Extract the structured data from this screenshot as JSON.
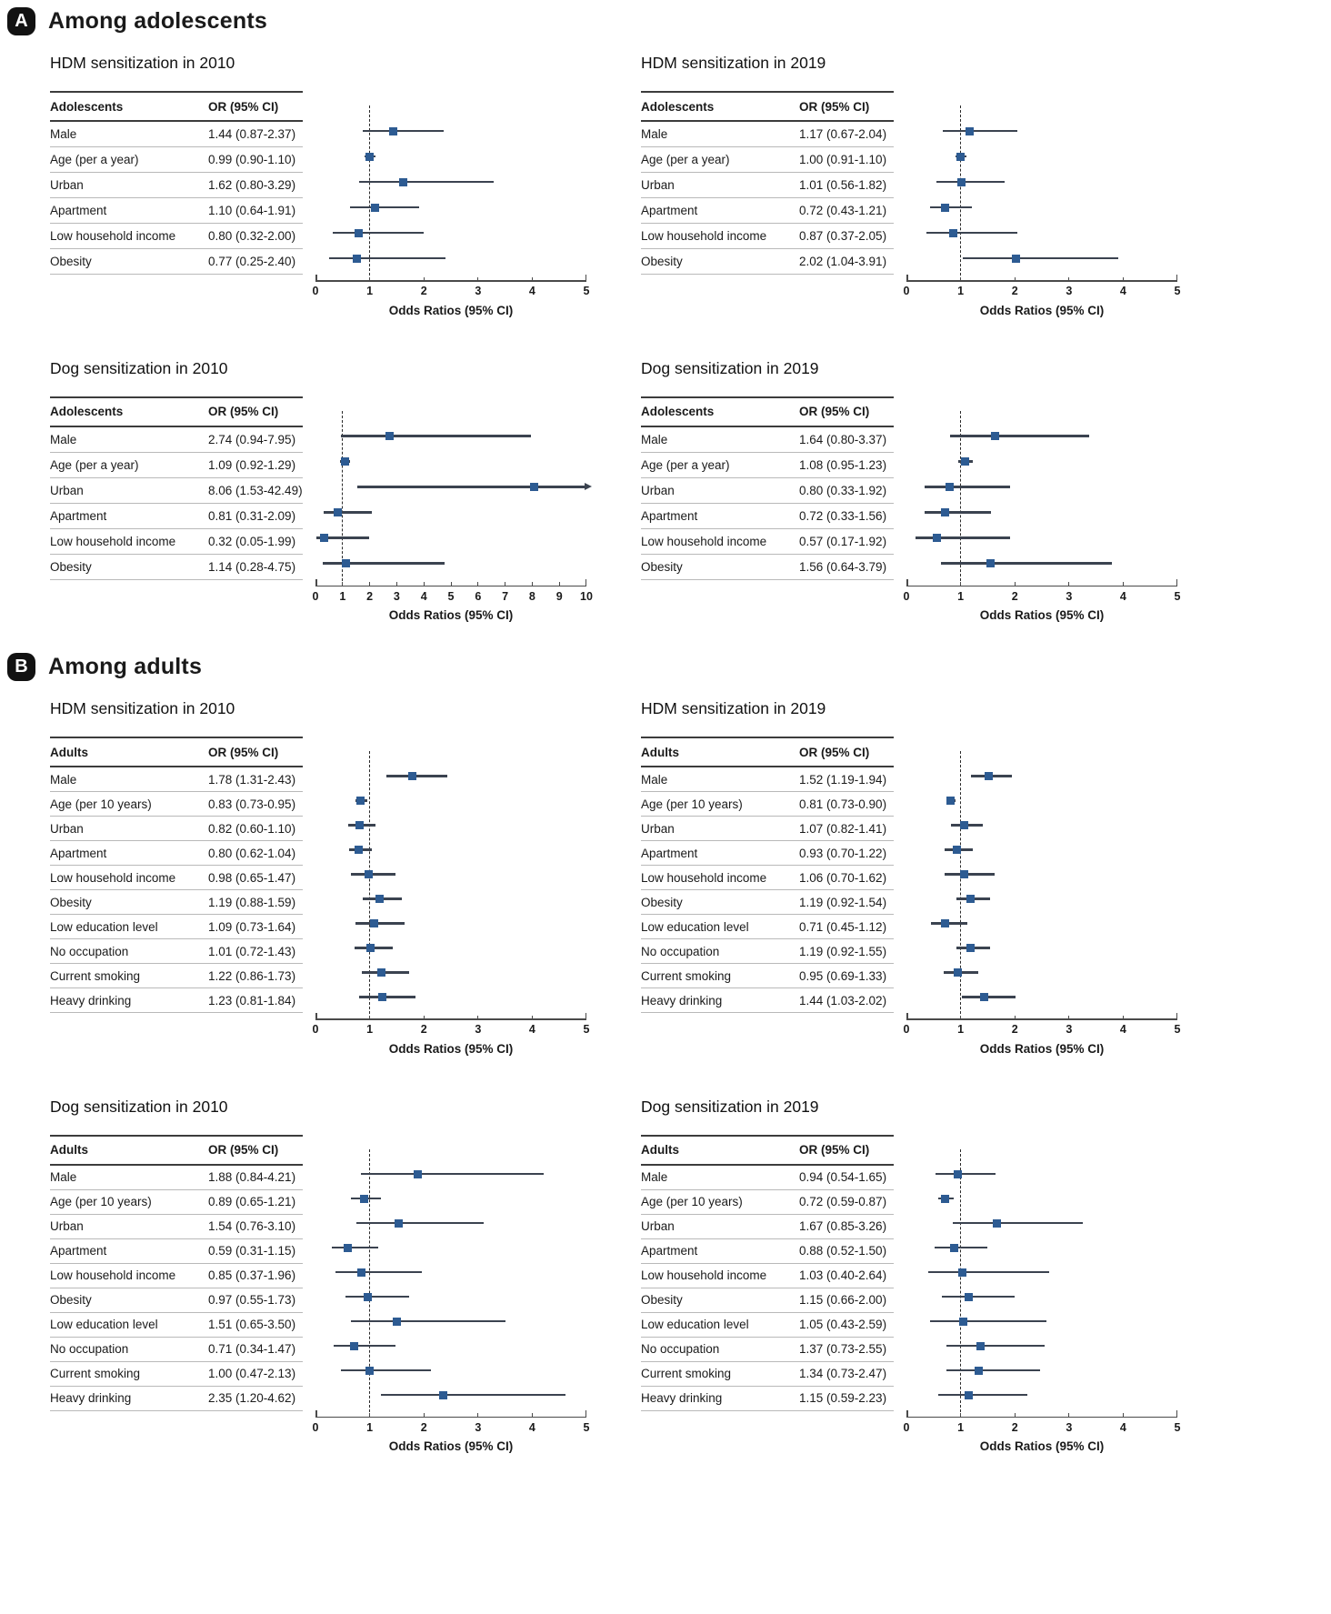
{
  "figure": {
    "sections": [
      {
        "badge": "A",
        "label": "Among adolescents"
      },
      {
        "badge": "B",
        "label": "Among adults"
      }
    ]
  },
  "chart_data": [
    {
      "type": "forest",
      "section": "A",
      "title": "HDM sensitization in 2010",
      "group_header": "Adolescents",
      "or_header": "OR (95% CI)",
      "xlabel": "Odds Ratios (95% CI)",
      "xlim": [
        0,
        5
      ],
      "xticks": [
        0,
        1,
        2,
        3,
        4,
        5
      ],
      "refline": 1,
      "rows": [
        {
          "label": "Male",
          "or_text": "1.44 (0.87-2.37)",
          "or": 1.44,
          "lo": 0.87,
          "hi": 2.37
        },
        {
          "label": "Age (per a year)",
          "or_text": "0.99 (0.90-1.10)",
          "or": 0.99,
          "lo": 0.9,
          "hi": 1.1
        },
        {
          "label": "Urban",
          "or_text": "1.62 (0.80-3.29)",
          "or": 1.62,
          "lo": 0.8,
          "hi": 3.29
        },
        {
          "label": "Apartment",
          "or_text": "1.10 (0.64-1.91)",
          "or": 1.1,
          "lo": 0.64,
          "hi": 1.91
        },
        {
          "label": "Low household income",
          "or_text": "0.80 (0.32-2.00)",
          "or": 0.8,
          "lo": 0.32,
          "hi": 2.0
        },
        {
          "label": "Obesity",
          "or_text": "0.77  (0.25-2.40)",
          "or": 0.77,
          "lo": 0.25,
          "hi": 2.4
        }
      ]
    },
    {
      "type": "forest",
      "section": "A",
      "title": "HDM sensitization in 2019",
      "group_header": "Adolescents",
      "or_header": "OR (95% CI)",
      "xlabel": "Odds Ratios (95% CI)",
      "xlim": [
        0,
        5
      ],
      "xticks": [
        0,
        1,
        2,
        3,
        4,
        5
      ],
      "refline": 1,
      "rows": [
        {
          "label": "Male",
          "or_text": "1.17 (0.67-2.04)",
          "or": 1.17,
          "lo": 0.67,
          "hi": 2.04
        },
        {
          "label": "Age (per a year)",
          "or_text": "1.00 (0.91-1.10)",
          "or": 1.0,
          "lo": 0.91,
          "hi": 1.1
        },
        {
          "label": "Urban",
          "or_text": "1.01 (0.56-1.82)",
          "or": 1.01,
          "lo": 0.56,
          "hi": 1.82
        },
        {
          "label": "Apartment",
          "or_text": "0.72 (0.43-1.21)",
          "or": 0.72,
          "lo": 0.43,
          "hi": 1.21
        },
        {
          "label": "Low household income",
          "or_text": "0.87 (0.37-2.05)",
          "or": 0.87,
          "lo": 0.37,
          "hi": 2.05
        },
        {
          "label": "Obesity",
          "or_text": "2.02 (1.04-3.91)",
          "or": 2.02,
          "lo": 1.04,
          "hi": 3.91
        }
      ]
    },
    {
      "type": "forest",
      "section": "A",
      "title": "Dog sensitization in 2010",
      "group_header": "Adolescents",
      "or_header": "OR (95% CI)",
      "xlabel": "Odds Ratios (95% CI)",
      "xlim": [
        0,
        10
      ],
      "xticks": [
        0,
        1,
        2,
        3,
        4,
        5,
        6,
        7,
        8,
        9,
        10
      ],
      "refline": 1,
      "rows": [
        {
          "label": "Male",
          "or_text": "2.74 (0.94-7.95)",
          "or": 2.74,
          "lo": 0.94,
          "hi": 7.95
        },
        {
          "label": "Age (per a year)",
          "or_text": "1.09 (0.92-1.29)",
          "or": 1.09,
          "lo": 0.92,
          "hi": 1.29
        },
        {
          "label": "Urban",
          "or_text": "8.06 (1.53-42.49)",
          "or": 8.06,
          "lo": 1.53,
          "hi": 42.49
        },
        {
          "label": "Apartment",
          "or_text": "0.81 (0.31-2.09)",
          "or": 0.81,
          "lo": 0.31,
          "hi": 2.09
        },
        {
          "label": "Low household income",
          "or_text": "0.32 (0.05-1.99)",
          "or": 0.32,
          "lo": 0.05,
          "hi": 1.99
        },
        {
          "label": "Obesity",
          "or_text": "1.14 (0.28-4.75)",
          "or": 1.14,
          "lo": 0.28,
          "hi": 4.75
        }
      ]
    },
    {
      "type": "forest",
      "section": "A",
      "title": "Dog sensitization in 2019",
      "group_header": "Adolescents",
      "or_header": "OR (95% CI)",
      "xlabel": "Odds Ratios (95% CI)",
      "xlim": [
        0,
        5
      ],
      "xticks": [
        0,
        1,
        2,
        3,
        4,
        5
      ],
      "refline": 1,
      "rows": [
        {
          "label": "Male",
          "or_text": "1.64 (0.80-3.37)",
          "or": 1.64,
          "lo": 0.8,
          "hi": 3.37
        },
        {
          "label": "Age (per a year)",
          "or_text": "1.08 (0.95-1.23)",
          "or": 1.08,
          "lo": 0.95,
          "hi": 1.23
        },
        {
          "label": "Urban",
          "or_text": "0.80 (0.33-1.92)",
          "or": 0.8,
          "lo": 0.33,
          "hi": 1.92
        },
        {
          "label": "Apartment",
          "or_text": "0.72 (0.33-1.56)",
          "or": 0.72,
          "lo": 0.33,
          "hi": 1.56
        },
        {
          "label": "Low household income",
          "or_text": "0.57 (0.17-1.92)",
          "or": 0.57,
          "lo": 0.17,
          "hi": 1.92
        },
        {
          "label": "Obesity",
          "or_text": "1.56  (0.64-3.79)",
          "or": 1.56,
          "lo": 0.64,
          "hi": 3.79
        }
      ]
    },
    {
      "type": "forest",
      "section": "B",
      "title": "HDM sensitization in 2010",
      "group_header": "Adults",
      "or_header": "OR (95% CI)",
      "xlabel": "Odds Ratios (95% CI)",
      "xlim": [
        0,
        5
      ],
      "xticks": [
        0,
        1,
        2,
        3,
        4,
        5
      ],
      "refline": 1,
      "rows": [
        {
          "label": "Male",
          "or_text": "1.78 (1.31-2.43)",
          "or": 1.78,
          "lo": 1.31,
          "hi": 2.43
        },
        {
          "label": "Age (per 10 years)",
          "or_text": "0.83 (0.73-0.95)",
          "or": 0.83,
          "lo": 0.73,
          "hi": 0.95
        },
        {
          "label": "Urban",
          "or_text": "0.82 (0.60-1.10)",
          "or": 0.82,
          "lo": 0.6,
          "hi": 1.1
        },
        {
          "label": "Apartment",
          "or_text": "0.80 (0.62-1.04)",
          "or": 0.8,
          "lo": 0.62,
          "hi": 1.04
        },
        {
          "label": "Low household income",
          "or_text": "0.98 (0.65-1.47)",
          "or": 0.98,
          "lo": 0.65,
          "hi": 1.47
        },
        {
          "label": "Obesity",
          "or_text": "1.19 (0.88-1.59)",
          "or": 1.19,
          "lo": 0.88,
          "hi": 1.59
        },
        {
          "label": "Low education level",
          "or_text": "1.09 (0.73-1.64)",
          "or": 1.09,
          "lo": 0.73,
          "hi": 1.64
        },
        {
          "label": "No occupation",
          "or_text": "1.01 (0.72-1.43)",
          "or": 1.01,
          "lo": 0.72,
          "hi": 1.43
        },
        {
          "label": "Current smoking",
          "or_text": "1.22 (0.86-1.73)",
          "or": 1.22,
          "lo": 0.86,
          "hi": 1.73
        },
        {
          "label": "Heavy drinking",
          "or_text": "1.23 (0.81-1.84)",
          "or": 1.23,
          "lo": 0.81,
          "hi": 1.84
        }
      ]
    },
    {
      "type": "forest",
      "section": "B",
      "title": "HDM sensitization in 2019",
      "group_header": "Adults",
      "or_header": "OR (95% CI)",
      "xlabel": "Odds Ratios (95% CI)",
      "xlim": [
        0,
        5
      ],
      "xticks": [
        0,
        1,
        2,
        3,
        4,
        5
      ],
      "refline": 1,
      "rows": [
        {
          "label": "Male",
          "or_text": "1.52 (1.19-1.94)",
          "or": 1.52,
          "lo": 1.19,
          "hi": 1.94
        },
        {
          "label": "Age (per 10 years)",
          "or_text": "0.81 (0.73-0.90)",
          "or": 0.81,
          "lo": 0.73,
          "hi": 0.9
        },
        {
          "label": "Urban",
          "or_text": "1.07 (0.82-1.41)",
          "or": 1.07,
          "lo": 0.82,
          "hi": 1.41
        },
        {
          "label": "Apartment",
          "or_text": "0.93 (0.70-1.22)",
          "or": 0.93,
          "lo": 0.7,
          "hi": 1.22
        },
        {
          "label": "Low household income",
          "or_text": "1.06 (0.70-1.62)",
          "or": 1.06,
          "lo": 0.7,
          "hi": 1.62
        },
        {
          "label": "Obesity",
          "or_text": "1.19 (0.92-1.54)",
          "or": 1.19,
          "lo": 0.92,
          "hi": 1.54
        },
        {
          "label": "Low education level",
          "or_text": "0.71 (0.45-1.12)",
          "or": 0.71,
          "lo": 0.45,
          "hi": 1.12
        },
        {
          "label": "No occupation",
          "or_text": "1.19 (0.92-1.55)",
          "or": 1.19,
          "lo": 0.92,
          "hi": 1.55
        },
        {
          "label": "Current smoking",
          "or_text": "0.95 (0.69-1.33)",
          "or": 0.95,
          "lo": 0.69,
          "hi": 1.33
        },
        {
          "label": "Heavy drinking",
          "or_text": "1.44 (1.03-2.02)",
          "or": 1.44,
          "lo": 1.03,
          "hi": 2.02
        }
      ]
    },
    {
      "type": "forest",
      "section": "B",
      "title": "Dog sensitization in 2010",
      "group_header": "Adults",
      "or_header": "OR (95% CI)",
      "xlabel": "Odds Ratios (95% CI)",
      "xlim": [
        0,
        5
      ],
      "xticks": [
        0,
        1,
        2,
        3,
        4,
        5
      ],
      "refline": 1,
      "rows": [
        {
          "label": "Male",
          "or_text": "1.88 (0.84-4.21)",
          "or": 1.88,
          "lo": 0.84,
          "hi": 4.21
        },
        {
          "label": "Age (per 10 years)",
          "or_text": "0.89 (0.65-1.21)",
          "or": 0.89,
          "lo": 0.65,
          "hi": 1.21
        },
        {
          "label": "Urban",
          "or_text": "1.54 (0.76-3.10)",
          "or": 1.54,
          "lo": 0.76,
          "hi": 3.1
        },
        {
          "label": "Apartment",
          "or_text": "0.59 (0.31-1.15)",
          "or": 0.59,
          "lo": 0.31,
          "hi": 1.15
        },
        {
          "label": "Low household income",
          "or_text": "0.85 (0.37-1.96)",
          "or": 0.85,
          "lo": 0.37,
          "hi": 1.96
        },
        {
          "label": "Obesity",
          "or_text": "0.97 (0.55-1.73)",
          "or": 0.97,
          "lo": 0.55,
          "hi": 1.73
        },
        {
          "label": "Low education level",
          "or_text": "1.51 (0.65-3.50)",
          "or": 1.51,
          "lo": 0.65,
          "hi": 3.5
        },
        {
          "label": "No occupation",
          "or_text": "0.71 (0.34-1.47)",
          "or": 0.71,
          "lo": 0.34,
          "hi": 1.47
        },
        {
          "label": "Current smoking",
          "or_text": "1.00 (0.47-2.13)",
          "or": 1.0,
          "lo": 0.47,
          "hi": 2.13
        },
        {
          "label": "Heavy drinking",
          "or_text": "2.35 (1.20-4.62)",
          "or": 2.35,
          "lo": 1.2,
          "hi": 4.62
        }
      ]
    },
    {
      "type": "forest",
      "section": "B",
      "title": "Dog sensitization in 2019",
      "group_header": "Adults",
      "or_header": "OR (95% CI)",
      "xlabel": "Odds Ratios (95% CI)",
      "xlim": [
        0,
        5
      ],
      "xticks": [
        0,
        1,
        2,
        3,
        4,
        5
      ],
      "refline": 1,
      "rows": [
        {
          "label": "Male",
          "or_text": "0.94 (0.54-1.65)",
          "or": 0.94,
          "lo": 0.54,
          "hi": 1.65
        },
        {
          "label": "Age (per 10 years)",
          "or_text": "0.72 (0.59-0.87)",
          "or": 0.72,
          "lo": 0.59,
          "hi": 0.87
        },
        {
          "label": "Urban",
          "or_text": "1.67 (0.85-3.26)",
          "or": 1.67,
          "lo": 0.85,
          "hi": 3.26
        },
        {
          "label": "Apartment",
          "or_text": "0.88 (0.52-1.50)",
          "or": 0.88,
          "lo": 0.52,
          "hi": 1.5
        },
        {
          "label": "Low household income",
          "or_text": "1.03 (0.40-2.64)",
          "or": 1.03,
          "lo": 0.4,
          "hi": 2.64
        },
        {
          "label": "Obesity",
          "or_text": "1.15 (0.66-2.00)",
          "or": 1.15,
          "lo": 0.66,
          "hi": 2.0
        },
        {
          "label": "Low education level",
          "or_text": "1.05 (0.43-2.59)",
          "or": 1.05,
          "lo": 0.43,
          "hi": 2.59
        },
        {
          "label": "No occupation",
          "or_text": "1.37 (0.73-2.55)",
          "or": 1.37,
          "lo": 0.73,
          "hi": 2.55
        },
        {
          "label": "Current smoking",
          "or_text": "1.34 (0.73-2.47)",
          "or": 1.34,
          "lo": 0.73,
          "hi": 2.47
        },
        {
          "label": "Heavy drinking",
          "or_text": "1.15 (0.59-2.23)",
          "or": 1.15,
          "lo": 0.59,
          "hi": 2.23
        }
      ]
    }
  ]
}
